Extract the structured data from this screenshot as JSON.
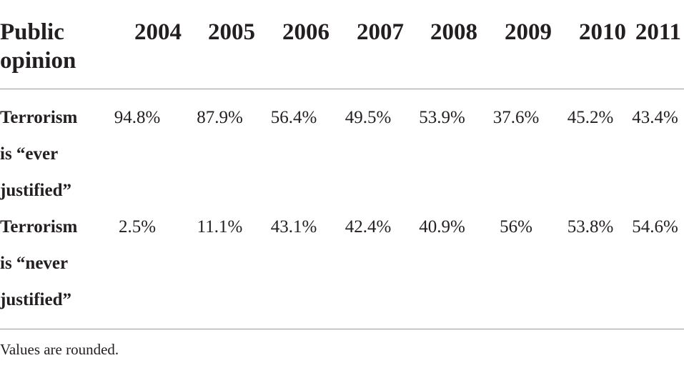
{
  "table": {
    "header": {
      "row_label": "Public opinion",
      "years": [
        "2004",
        "2005",
        "2006",
        "2007",
        "2008",
        "2009",
        "2010",
        "2011"
      ]
    },
    "rows": [
      {
        "label": "Terrorism is “ever justified”",
        "values": [
          "94.8%",
          "87.9%",
          "56.4%",
          "49.5%",
          "53.9%",
          "37.6%",
          "45.2%",
          "43.4%"
        ]
      },
      {
        "label": "Terrorism is “never justified”",
        "values": [
          "2.5%",
          "11.1%",
          "43.1%",
          "42.4%",
          "40.9%",
          "56%",
          "53.8%",
          "54.6%"
        ]
      }
    ]
  },
  "footnote": "Values are rounded.",
  "colors": {
    "text": "#231f20",
    "rule": "#9a9a9a",
    "background": "#ffffff"
  }
}
